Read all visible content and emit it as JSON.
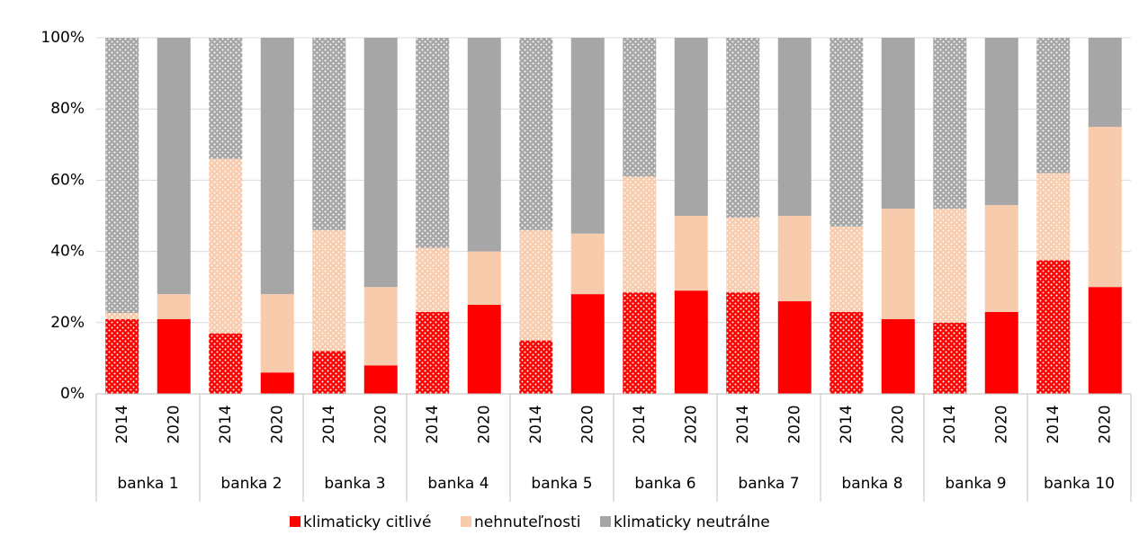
{
  "chart_data": {
    "type": "stacked_bar",
    "categories": [
      "2014",
      "2020",
      "2014",
      "2020",
      "2014",
      "2020",
      "2014",
      "2020",
      "2014",
      "2020",
      "2014",
      "2020",
      "2014",
      "2020",
      "2014",
      "2020",
      "2014",
      "2020",
      "2014",
      "2020"
    ],
    "groups": [
      "banka 1",
      "banka 2",
      "banka 3",
      "banka 4",
      "banka 5",
      "banka 6",
      "banka 7",
      "banka 8",
      "banka 9",
      "banka 10"
    ],
    "series": [
      {
        "name": "klimaticky citlivé",
        "color": "#ff0000",
        "values": [
          21,
          21,
          17,
          6,
          12,
          8,
          23,
          25,
          15,
          28,
          28.5,
          29,
          28.5,
          26,
          23,
          21,
          20,
          23,
          37.5,
          30
        ]
      },
      {
        "name": "nehnuteľnosti",
        "color": "#f8cbad",
        "values": [
          1.7,
          7,
          49,
          22,
          34,
          22,
          18,
          15,
          31,
          17,
          32.5,
          21,
          21,
          24,
          24,
          31,
          32,
          30,
          24.5,
          45
        ]
      },
      {
        "name": "klimaticky neutrálne",
        "color": "#a6a6a6",
        "values": [
          77.3,
          72,
          34,
          72,
          54,
          70,
          59,
          60,
          54,
          55,
          39,
          50,
          50.5,
          50,
          53,
          48,
          48,
          47,
          38,
          25
        ]
      }
    ],
    "ylim": [
      0,
      100
    ],
    "yticks": [
      {
        "value": 0,
        "label": "0%"
      },
      {
        "value": 20,
        "label": "20%"
      },
      {
        "value": 40,
        "label": "40%"
      },
      {
        "value": 60,
        "label": "60%"
      },
      {
        "value": 80,
        "label": "80%"
      },
      {
        "value": 100,
        "label": "100%"
      }
    ],
    "grid": true,
    "legend": "bottom"
  }
}
